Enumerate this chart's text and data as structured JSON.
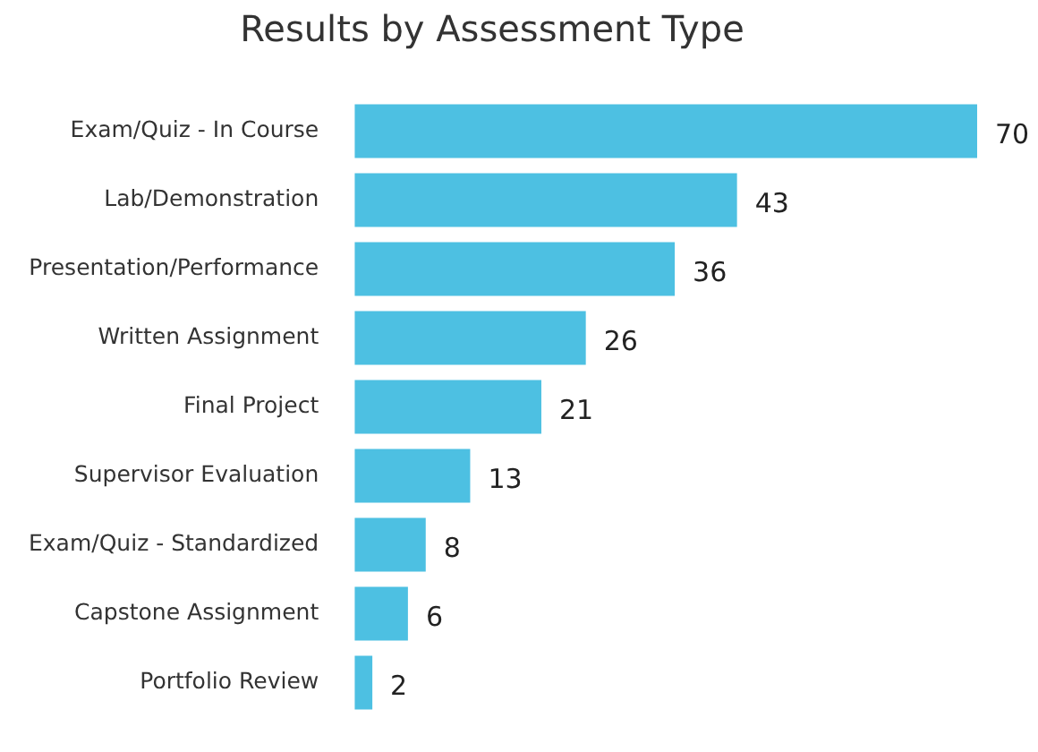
{
  "chart_data": {
    "type": "bar",
    "orientation": "horizontal",
    "title": "Results by Assessment Type",
    "categories": [
      "Exam/Quiz - In Course",
      "Lab/Demonstration",
      "Presentation/Performance",
      "Written Assignment",
      "Final Project",
      "Supervisor Evaluation",
      "Exam/Quiz - Standardized",
      "Capstone Assignment",
      "Portfolio Review"
    ],
    "values": [
      70,
      43,
      36,
      26,
      21,
      13,
      8,
      6,
      2
    ],
    "color": "#4dc0e2",
    "data_labels": true
  }
}
